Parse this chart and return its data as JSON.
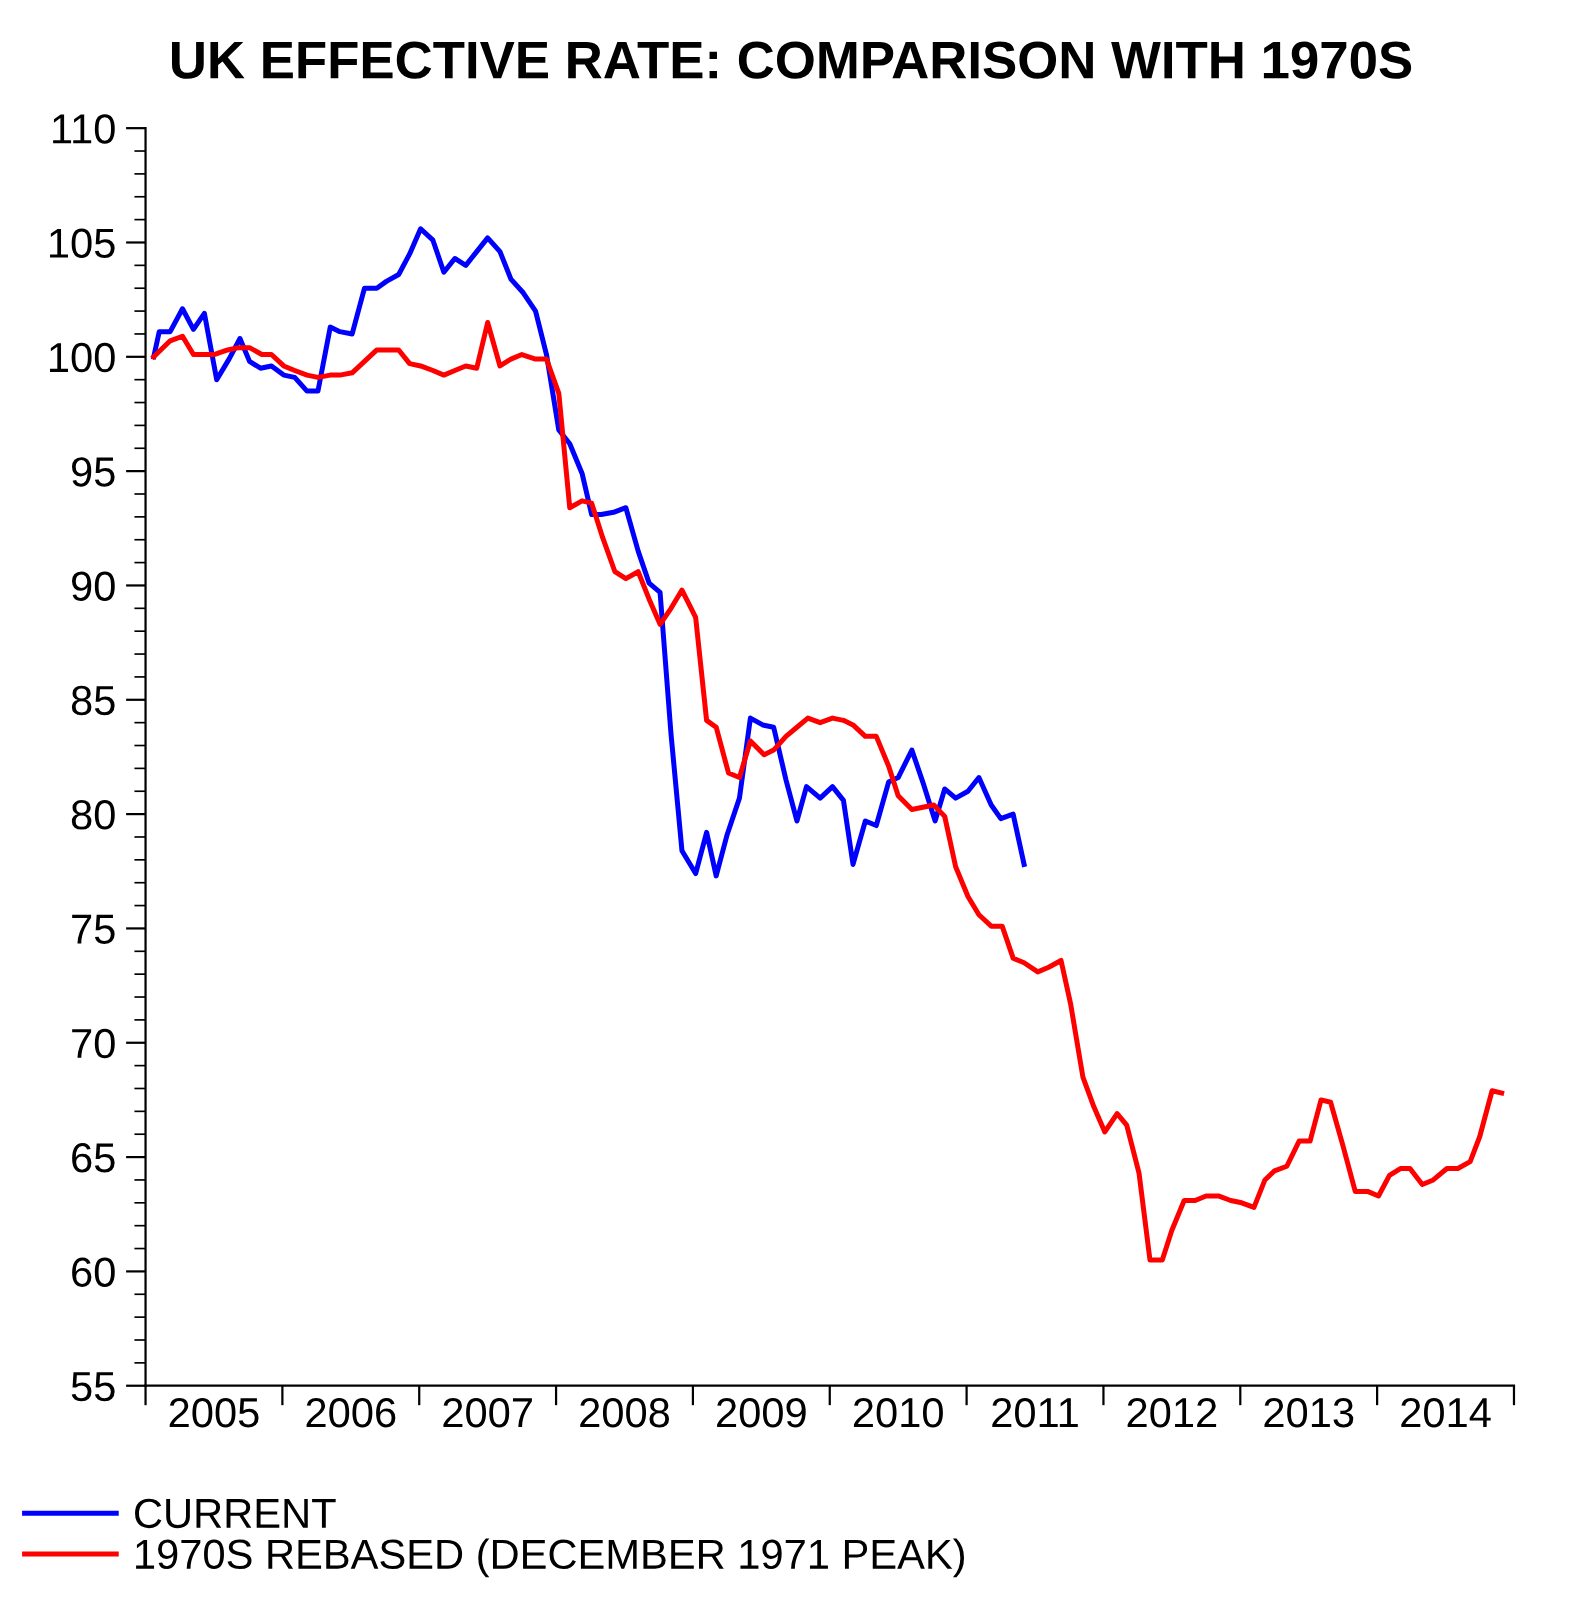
{
  "chart_data": {
    "type": "line",
    "title": "UK EFFECTIVE RATE: COMPARISON WITH 1970S",
    "xlim": [
      2005,
      2015
    ],
    "xticks": [
      {
        "value": 2005,
        "label": null
      },
      {
        "value": 2005.5,
        "label": "2005"
      },
      {
        "value": 2006,
        "label": null
      },
      {
        "value": 2006.5,
        "label": "2006"
      },
      {
        "value": 2007,
        "label": null
      },
      {
        "value": 2007.5,
        "label": "2007"
      },
      {
        "value": 2008,
        "label": null
      },
      {
        "value": 2008.5,
        "label": "2008"
      },
      {
        "value": 2009,
        "label": null
      },
      {
        "value": 2009.5,
        "label": "2009"
      },
      {
        "value": 2010,
        "label": null
      },
      {
        "value": 2010.5,
        "label": "2010"
      },
      {
        "value": 2011,
        "label": null
      },
      {
        "value": 2011.5,
        "label": "2011"
      },
      {
        "value": 2012,
        "label": null
      },
      {
        "value": 2012.5,
        "label": "2012"
      },
      {
        "value": 2013,
        "label": null
      },
      {
        "value": 2013.5,
        "label": "2013"
      },
      {
        "value": 2014,
        "label": null
      },
      {
        "value": 2014.5,
        "label": "2014"
      },
      {
        "value": 2015,
        "label": null
      }
    ],
    "ylim": [
      55,
      110
    ],
    "yticks": [
      55,
      60,
      65,
      70,
      75,
      80,
      85,
      90,
      95,
      100,
      105,
      110
    ],
    "grid": false,
    "legend": "bottom left",
    "line_style": "solid",
    "marker": "none",
    "series": [
      {
        "name": "CURRENT",
        "color": "#0000ff",
        "x": [
          2005.06,
          2005.1,
          2005.18,
          2005.27,
          2005.35,
          2005.43,
          2005.52,
          2005.61,
          2005.69,
          2005.76,
          2005.84,
          2005.92,
          2006.01,
          2006.09,
          2006.18,
          2006.26,
          2006.35,
          2006.42,
          2006.51,
          2006.6,
          2006.69,
          2006.76,
          2006.85,
          2006.93,
          2007.01,
          2007.1,
          2007.18,
          2007.26,
          2007.34,
          2007.42,
          2007.5,
          2007.59,
          2007.67,
          2007.76,
          2007.85,
          2007.93,
          2008.02,
          2008.1,
          2008.19,
          2008.26,
          2008.33,
          2008.42,
          2008.51,
          2008.6,
          2008.68,
          2008.76,
          2008.84,
          2008.92,
          2009.02,
          2009.1,
          2009.17,
          2009.25,
          2009.34,
          2009.42,
          2009.51,
          2009.59,
          2009.68,
          2009.76,
          2009.83,
          2009.93,
          2010.02,
          2010.1,
          2010.17,
          2010.26,
          2010.34,
          2010.43,
          2010.5,
          2010.6,
          2010.68,
          2010.77,
          2010.84,
          2010.92,
          2011.01,
          2011.09,
          2011.18,
          2011.25,
          2011.34,
          2011.42
        ],
        "values": [
          100.0,
          101.1,
          101.1,
          102.1,
          101.2,
          101.9,
          99.0,
          99.9,
          100.8,
          99.8,
          99.5,
          99.6,
          99.2,
          99.1,
          98.5,
          98.5,
          101.3,
          101.1,
          101.0,
          103.0,
          103.0,
          103.3,
          103.6,
          104.5,
          105.6,
          105.1,
          103.7,
          104.3,
          104.0,
          104.6,
          105.2,
          104.6,
          103.4,
          102.8,
          102.0,
          100.1,
          96.8,
          96.2,
          94.9,
          93.1,
          93.1,
          93.2,
          93.4,
          91.5,
          90.1,
          89.7,
          83.5,
          78.4,
          77.4,
          79.2,
          77.3,
          79.1,
          80.7,
          84.2,
          83.9,
          83.8,
          81.5,
          79.7,
          81.2,
          80.7,
          81.2,
          80.6,
          77.8,
          79.7,
          79.5,
          81.4,
          81.6,
          82.8,
          81.4,
          79.7,
          81.1,
          80.7,
          81.0,
          81.6,
          80.4,
          79.8,
          80.0,
          77.8
        ]
      },
      {
        "name": "1970S REBASED (DECEMBER 1971 PEAK)",
        "color": "#ff0000",
        "x": [
          2005.06,
          2005.18,
          2005.27,
          2005.35,
          2005.5,
          2005.6,
          2005.68,
          2005.76,
          2005.85,
          2005.92,
          2006.01,
          2006.09,
          2006.18,
          2006.26,
          2006.35,
          2006.42,
          2006.51,
          2006.6,
          2006.69,
          2006.77,
          2006.85,
          2006.93,
          2007.01,
          2007.1,
          2007.18,
          2007.26,
          2007.34,
          2007.42,
          2007.5,
          2007.59,
          2007.67,
          2007.75,
          2007.85,
          2007.93,
          2008.02,
          2008.1,
          2008.19,
          2008.26,
          2008.34,
          2008.43,
          2008.51,
          2008.6,
          2008.68,
          2008.76,
          2008.84,
          2008.92,
          2009.02,
          2009.1,
          2009.17,
          2009.26,
          2009.34,
          2009.42,
          2009.52,
          2009.59,
          2009.68,
          2009.76,
          2009.84,
          2009.93,
          2010.02,
          2010.1,
          2010.17,
          2010.26,
          2010.34,
          2010.43,
          2010.5,
          2010.6,
          2010.68,
          2010.76,
          2010.84,
          2010.92,
          2011.01,
          2011.09,
          2011.18,
          2011.26,
          2011.34,
          2011.42,
          2011.52,
          2011.6,
          2011.69,
          2011.76,
          2011.85,
          2011.93,
          2012.01,
          2012.1,
          2012.17,
          2012.26,
          2012.34,
          2012.43,
          2012.5,
          2012.59,
          2012.67,
          2012.75,
          2012.84,
          2012.93,
          2013.01,
          2013.1,
          2013.18,
          2013.25,
          2013.34,
          2013.43,
          2013.51,
          2013.59,
          2013.66,
          2013.75,
          2013.84,
          2013.93,
          2014.01,
          2014.09,
          2014.17,
          2014.24,
          2014.33,
          2014.41,
          2014.51,
          2014.59,
          2014.68,
          2014.75,
          2014.84,
          2014.91
        ],
        "values": [
          100.0,
          100.7,
          100.9,
          100.1,
          100.1,
          100.3,
          100.4,
          100.4,
          100.1,
          100.1,
          99.6,
          99.4,
          99.2,
          99.1,
          99.2,
          99.2,
          99.3,
          99.8,
          100.3,
          100.3,
          100.3,
          99.7,
          99.6,
          99.4,
          99.2,
          99.4,
          99.6,
          99.5,
          101.5,
          99.6,
          99.9,
          100.1,
          99.9,
          99.9,
          98.4,
          93.4,
          93.7,
          93.6,
          92.1,
          90.6,
          90.3,
          90.6,
          89.4,
          88.3,
          89.0,
          89.8,
          88.6,
          84.1,
          83.8,
          81.8,
          81.6,
          83.2,
          82.6,
          82.8,
          83.4,
          83.8,
          84.2,
          84.0,
          84.2,
          84.1,
          83.9,
          83.4,
          83.4,
          82.1,
          80.8,
          80.2,
          80.3,
          80.4,
          79.9,
          77.7,
          76.4,
          75.6,
          75.1,
          75.1,
          73.7,
          73.5,
          73.1,
          73.3,
          73.6,
          71.7,
          68.5,
          67.2,
          66.1,
          66.9,
          66.4,
          64.3,
          60.5,
          60.5,
          61.8,
          63.1,
          63.1,
          63.3,
          63.3,
          63.1,
          63.0,
          62.8,
          64.0,
          64.4,
          64.6,
          65.7,
          65.7,
          67.5,
          67.4,
          65.5,
          63.5,
          63.5,
          63.3,
          64.2,
          64.5,
          64.5,
          63.8,
          64.0,
          64.5,
          64.5,
          64.8,
          65.9,
          67.9,
          67.8
        ]
      }
    ]
  }
}
